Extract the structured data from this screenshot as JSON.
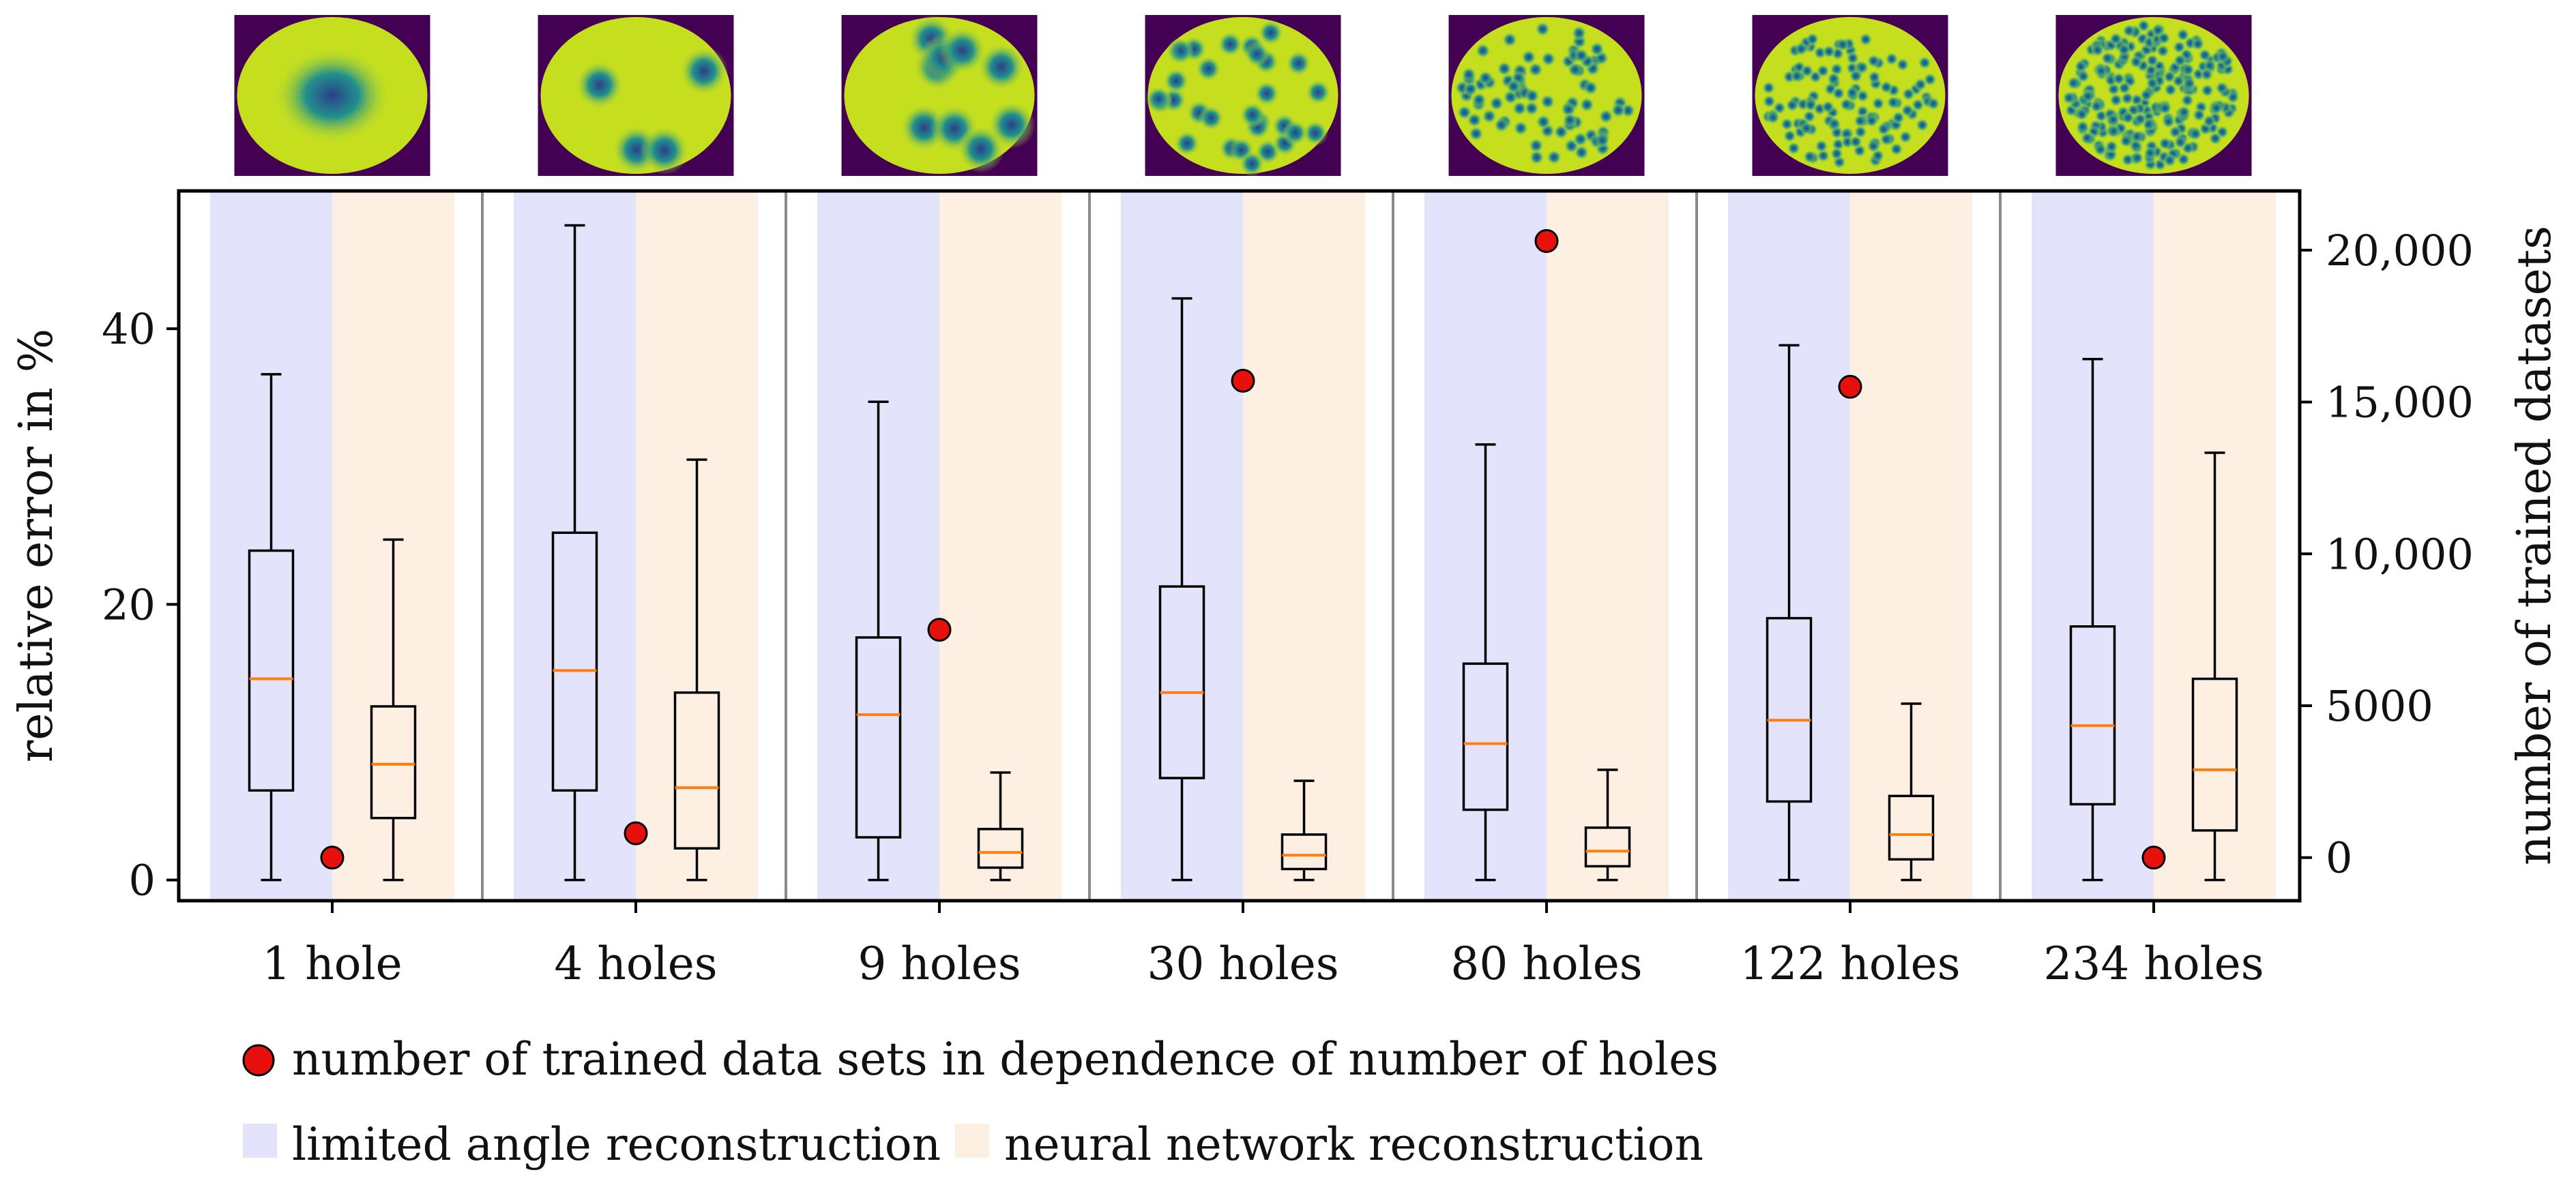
{
  "chart_data": {
    "type": "box",
    "groups": [
      "1 hole",
      "4 holes",
      "9 holes",
      "30 holes",
      "80 holes",
      "122 holes",
      "234 holes"
    ],
    "left_axis": {
      "label": "relative error in %",
      "ticks": [
        "0",
        "20",
        "40"
      ],
      "range": [
        -1.5,
        50
      ]
    },
    "right_axis": {
      "label": "number of trained datasets",
      "ticks": [
        "0",
        "5000",
        "10,000",
        "15,000",
        "20,000"
      ],
      "range": [
        -1420,
        21950
      ]
    },
    "series": [
      {
        "name": "limited angle reconstruction",
        "color": "#e3e3fb",
        "boxes": [
          {
            "min": 0,
            "q1": 6.5,
            "median": 14.6,
            "q3": 23.9,
            "max": 36.7
          },
          {
            "min": 0,
            "q1": 6.5,
            "median": 15.2,
            "q3": 25.2,
            "max": 47.5
          },
          {
            "min": 0,
            "q1": 3.1,
            "median": 12.0,
            "q3": 17.6,
            "max": 34.7
          },
          {
            "min": 0,
            "q1": 7.4,
            "median": 13.6,
            "q3": 21.3,
            "max": 42.2
          },
          {
            "min": 0,
            "q1": 5.1,
            "median": 9.9,
            "q3": 15.7,
            "max": 31.6
          },
          {
            "min": 0,
            "q1": 5.7,
            "median": 11.6,
            "q3": 19.0,
            "max": 38.8
          },
          {
            "min": 0,
            "q1": 5.5,
            "median": 11.2,
            "q3": 18.4,
            "max": 37.8
          }
        ]
      },
      {
        "name": "neural network reconstruction",
        "color": "#fdf0e3",
        "boxes": [
          {
            "min": 0,
            "q1": 4.5,
            "median": 8.4,
            "q3": 12.6,
            "max": 24.7
          },
          {
            "min": 0,
            "q1": 2.3,
            "median": 6.7,
            "q3": 13.6,
            "max": 30.5
          },
          {
            "min": 0,
            "q1": 0.9,
            "median": 2.0,
            "q3": 3.7,
            "max": 7.8
          },
          {
            "min": 0,
            "q1": 0.8,
            "median": 1.8,
            "q3": 3.3,
            "max": 7.2
          },
          {
            "min": 0,
            "q1": 1.0,
            "median": 2.1,
            "q3": 3.8,
            "max": 8.0
          },
          {
            "min": 0,
            "q1": 1.5,
            "median": 3.3,
            "q3": 6.1,
            "max": 12.8
          },
          {
            "min": 0,
            "q1": 3.6,
            "median": 8.0,
            "q3": 14.6,
            "max": 31.0
          }
        ]
      }
    ],
    "trained_datasets": {
      "name": "number of trained data sets in dependence of number of holes",
      "values": [
        0,
        800,
        7500,
        15700,
        20300,
        15500,
        0
      ]
    },
    "thumbnails": {
      "hole_counts": [
        1,
        4,
        9,
        30,
        80,
        122,
        234
      ]
    }
  },
  "legend": {
    "dots": "number of trained data sets in dependence of number of holes",
    "limited": "limited angle reconstruction",
    "neural": "neural network reconstruction"
  },
  "colors": {
    "limited_bg": "#e3e3fb",
    "neural_bg": "#fdf0e3",
    "median": "#ff7f0e",
    "dot": "#e8100c",
    "thumb_bg": "#440154",
    "thumb_disk": "#c5df1f",
    "hole_center": "#2c3f8a",
    "hole_mid": "#21918c"
  }
}
